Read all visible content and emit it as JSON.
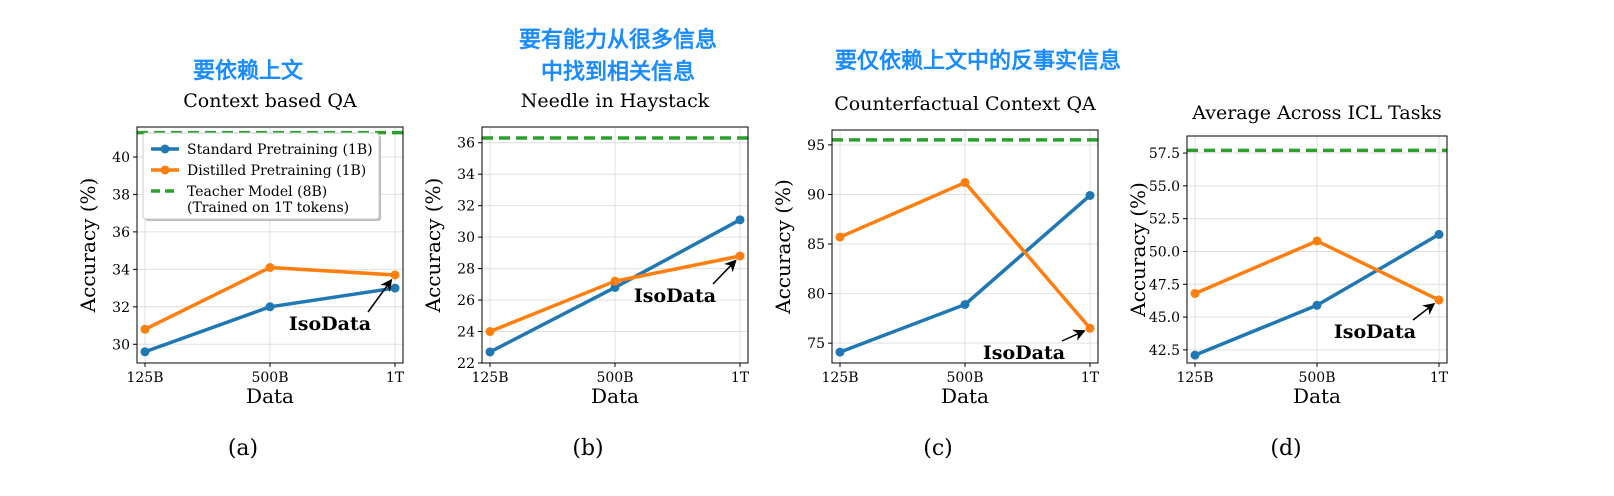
{
  "colors": {
    "standard": "#1f77b4",
    "distilled": "#ff7f0e",
    "teacher": "#2ca02c",
    "annotation_text": "#1a8cff",
    "grid": "#e0e0e0"
  },
  "chart_data": [
    {
      "type": "line",
      "panel_label": "(a)",
      "title": "Context based QA",
      "annotation_cn": [
        "要依赖上文"
      ],
      "xlabel": "Data",
      "ylabel": "Accuracy (%)",
      "categories": [
        "125B",
        "500B",
        "1T"
      ],
      "ylim": [
        29.0,
        41.6
      ],
      "yticks": [
        30,
        32,
        34,
        36,
        38,
        40
      ],
      "ytick_decimals": 0,
      "teacher_value": 41.3,
      "series": [
        {
          "name": "Standard Pretraining (1B)",
          "key": "standard",
          "values": [
            29.6,
            32.0,
            33.0
          ]
        },
        {
          "name": "Distilled Pretraining (1B)",
          "key": "distilled",
          "values": [
            30.8,
            34.1,
            33.7
          ]
        }
      ],
      "isodata": {
        "label": "IsoData",
        "target_index": 2,
        "target_series": "distilled"
      },
      "legend": {
        "placement": "upper-left",
        "entries": [
          {
            "key": "standard",
            "label": "Standard Pretraining (1B)"
          },
          {
            "key": "distilled",
            "label": "Distilled Pretraining (1B)"
          },
          {
            "key": "teacher",
            "label": "Teacher Model (8B)",
            "label2": "(Trained on 1T tokens)"
          }
        ]
      },
      "grid": true
    },
    {
      "type": "line",
      "panel_label": "(b)",
      "title": "Needle in Haystack",
      "annotation_cn": [
        "要有能力从很多信息",
        "中找到相关信息"
      ],
      "xlabel": "Data",
      "ylabel": "Accuracy (%)",
      "categories": [
        "125B",
        "500B",
        "1T"
      ],
      "ylim": [
        22.0,
        37.0
      ],
      "yticks": [
        22,
        24,
        26,
        28,
        30,
        32,
        34,
        36
      ],
      "ytick_decimals": 0,
      "teacher_value": 36.3,
      "series": [
        {
          "name": "Standard Pretraining (1B)",
          "key": "standard",
          "values": [
            22.7,
            26.8,
            31.1
          ]
        },
        {
          "name": "Distilled Pretraining (1B)",
          "key": "distilled",
          "values": [
            24.0,
            27.2,
            28.8
          ]
        }
      ],
      "isodata": {
        "label": "IsoData",
        "target_index": 2,
        "target_series": "distilled"
      },
      "grid": true
    },
    {
      "type": "line",
      "panel_label": "(c)",
      "title": "Counterfactual Context QA",
      "annotation_cn": [
        "要仅依赖上文中的反事实信息"
      ],
      "xlabel": "Data",
      "ylabel": "Accuracy (%)",
      "categories": [
        "125B",
        "500B",
        "1T"
      ],
      "ylim": [
        73.0,
        96.5
      ],
      "yticks": [
        75,
        80,
        85,
        90,
        95
      ],
      "ytick_decimals": 0,
      "teacher_value": 95.5,
      "series": [
        {
          "name": "Standard Pretraining (1B)",
          "key": "standard",
          "values": [
            74.1,
            78.9,
            89.9
          ]
        },
        {
          "name": "Distilled Pretraining (1B)",
          "key": "distilled",
          "values": [
            85.7,
            91.2,
            76.5
          ]
        }
      ],
      "isodata": {
        "label": "IsoData",
        "target_index": 2,
        "target_series": "distilled"
      },
      "grid": true
    },
    {
      "type": "line",
      "panel_label": "(d)",
      "title": "Average Across ICL Tasks",
      "annotation_cn": [],
      "xlabel": "Data",
      "ylabel": "Accuracy (%)",
      "categories": [
        "125B",
        "500B",
        "1T"
      ],
      "ylim": [
        41.5,
        58.8
      ],
      "yticks": [
        42.5,
        45.0,
        47.5,
        50.0,
        52.5,
        55.0,
        57.5
      ],
      "ytick_decimals": 1,
      "teacher_value": 57.7,
      "series": [
        {
          "name": "Standard Pretraining (1B)",
          "key": "standard",
          "values": [
            42.1,
            45.9,
            51.3
          ]
        },
        {
          "name": "Distilled Pretraining (1B)",
          "key": "distilled",
          "values": [
            46.8,
            50.8,
            46.3
          ]
        }
      ],
      "isodata": {
        "label": "IsoData",
        "target_index": 2,
        "target_series": "distilled"
      },
      "grid": true
    }
  ]
}
